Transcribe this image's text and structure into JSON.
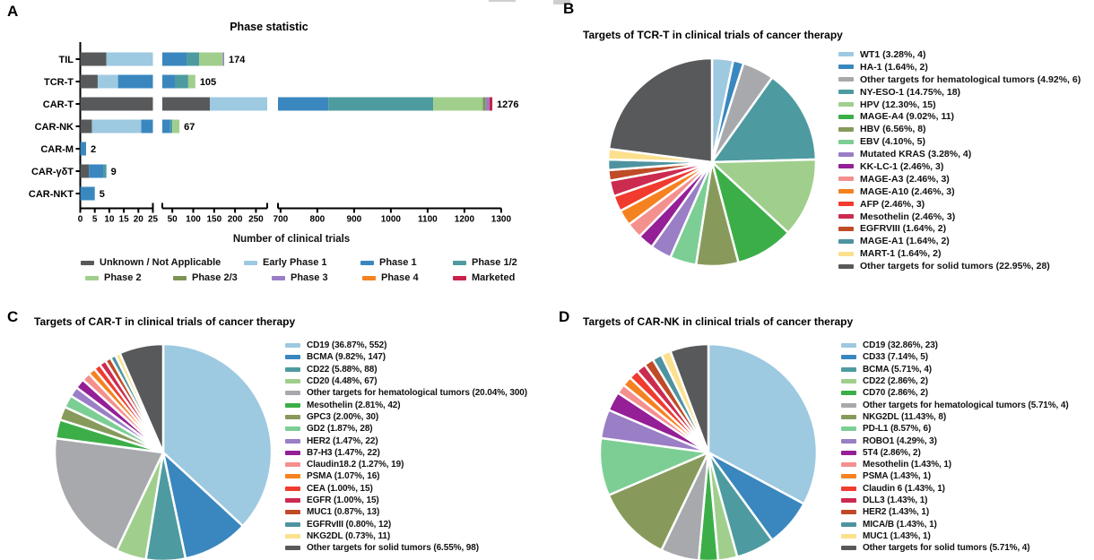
{
  "panel_labels": {
    "a": "A",
    "b": "B",
    "c": "C",
    "d": "D"
  },
  "chart_data": [
    {
      "id": "phase-bar",
      "type": "bar",
      "orientation": "horizontal-stacked",
      "title": "Phase statistic",
      "xlabel": "Number of clinical trials",
      "categories": [
        "TIL",
        "TCR-T",
        "CAR-T",
        "CAR-NK",
        "CAR-M",
        "CAR-γδT",
        "CAR-NKT"
      ],
      "totals": [
        174,
        105,
        1276,
        67,
        2,
        9,
        5
      ],
      "axis_break_domains": [
        [
          0,
          25
        ],
        [
          26,
          277
        ],
        [
          693,
          1300
        ]
      ],
      "x_ticks": [
        [
          0,
          5,
          10,
          15,
          20,
          25
        ],
        [
          50,
          100,
          150,
          200,
          250
        ],
        [
          700,
          800,
          900,
          1000,
          1100,
          1200,
          1300
        ]
      ],
      "series": [
        {
          "name": "Unknown / Not Applicable",
          "color": "#58595B",
          "values": [
            9,
            6,
            140,
            4,
            0,
            3,
            0
          ]
        },
        {
          "name": "Early Phase 1",
          "color": "#9DC9E1",
          "values": [
            17,
            7,
            150,
            17,
            0,
            0,
            0
          ]
        },
        {
          "name": "Phase 1",
          "color": "#3A87BF",
          "values": [
            58,
            43,
            540,
            24,
            2,
            5,
            5
          ]
        },
        {
          "name": "Phase 1/2",
          "color": "#4D9B9F",
          "values": [
            30,
            32,
            285,
            5,
            0,
            1,
            0
          ]
        },
        {
          "name": "Phase 2",
          "color": "#A0CF8D",
          "values": [
            57,
            17,
            135,
            17,
            0,
            0,
            0
          ]
        },
        {
          "name": "Phase 2/3",
          "color": "#7E9455",
          "values": [
            0,
            0,
            8,
            0,
            0,
            0,
            0
          ]
        },
        {
          "name": "Phase 3",
          "color": "#9A7EC6",
          "values": [
            3,
            0,
            10,
            0,
            0,
            0,
            0
          ]
        },
        {
          "name": "Phase 4",
          "color": "#F58220",
          "values": [
            0,
            0,
            0,
            0,
            0,
            0,
            0
          ]
        },
        {
          "name": "Marketed",
          "color": "#C8234A",
          "values": [
            0,
            0,
            8,
            0,
            0,
            0,
            0
          ]
        }
      ]
    },
    {
      "id": "tcr-t-pie",
      "type": "pie",
      "title": "Targets of TCR-T in clinical trials of cancer therapy",
      "legend_position": "right",
      "slices": [
        {
          "label": "WT1",
          "pct": 3.28,
          "count": 4,
          "color": "#9DC9E1"
        },
        {
          "label": "HA-1",
          "pct": 1.64,
          "count": 2,
          "color": "#3A87BF"
        },
        {
          "label": "Other targets for hematological tumors",
          "pct": 4.92,
          "count": 6,
          "color": "#A7A9AC"
        },
        {
          "label": "NY-ESO-1",
          "pct": 14.75,
          "count": 18,
          "color": "#4D9BA0"
        },
        {
          "label": "HPV",
          "pct": 12.3,
          "count": 15,
          "color": "#A0CF8D"
        },
        {
          "label": "MAGE-A4",
          "pct": 9.02,
          "count": 11,
          "color": "#3CAE48"
        },
        {
          "label": "HBV",
          "pct": 6.56,
          "count": 8,
          "color": "#879A5B"
        },
        {
          "label": "EBV",
          "pct": 4.1,
          "count": 5,
          "color": "#7CCE94"
        },
        {
          "label": "Mutated KRAS",
          "pct": 3.28,
          "count": 4,
          "color": "#9A7EC6"
        },
        {
          "label": "KK-LC-1",
          "pct": 2.46,
          "count": 3,
          "color": "#941F96"
        },
        {
          "label": "MAGE-A3",
          "pct": 2.46,
          "count": 3,
          "color": "#F4908E"
        },
        {
          "label": "MAGE-A10",
          "pct": 2.46,
          "count": 3,
          "color": "#F58220"
        },
        {
          "label": "AFP",
          "pct": 2.46,
          "count": 3,
          "color": "#F03B2E"
        },
        {
          "label": "Mesothelin",
          "pct": 2.46,
          "count": 3,
          "color": "#CC2B50"
        },
        {
          "label": "EGFRVIII",
          "pct": 1.64,
          "count": 2,
          "color": "#BF4B27"
        },
        {
          "label": "MAGE-A1",
          "pct": 1.64,
          "count": 2,
          "color": "#4E94A0"
        },
        {
          "label": "MART-1",
          "pct": 1.64,
          "count": 2,
          "color": "#FBE08E"
        },
        {
          "label": "Other targets for solid tumors",
          "pct": 22.95,
          "count": 28,
          "color": "#58595B"
        }
      ]
    },
    {
      "id": "car-t-pie",
      "type": "pie",
      "title": "Targets of CAR-T in clinical trials of cancer therapy",
      "legend_position": "right",
      "slices": [
        {
          "label": "CD19",
          "pct": 36.87,
          "count": 552,
          "color": "#9DC9E1"
        },
        {
          "label": "BCMA",
          "pct": 9.82,
          "count": 147,
          "color": "#3A87BF"
        },
        {
          "label": "CD22",
          "pct": 5.88,
          "count": 88,
          "color": "#4D9BA0"
        },
        {
          "label": "CD20",
          "pct": 4.48,
          "count": 67,
          "color": "#A0CF8D"
        },
        {
          "label": "Other targets for hematological tumors",
          "pct": 20.04,
          "count": 300,
          "color": "#A7A9AC"
        },
        {
          "label": "Mesothelin",
          "pct": 2.81,
          "count": 42,
          "color": "#3CAE48"
        },
        {
          "label": "GPC3",
          "pct": 2.0,
          "count": 30,
          "color": "#879A5B"
        },
        {
          "label": "GD2",
          "pct": 1.87,
          "count": 28,
          "color": "#7CCE94"
        },
        {
          "label": "HER2",
          "pct": 1.47,
          "count": 22,
          "color": "#9A7EC6"
        },
        {
          "label": "B7-H3",
          "pct": 1.47,
          "count": 22,
          "color": "#941F96"
        },
        {
          "label": "Claudin18.2",
          "pct": 1.27,
          "count": 19,
          "color": "#F4908E"
        },
        {
          "label": "PSMA",
          "pct": 1.07,
          "count": 16,
          "color": "#F58220"
        },
        {
          "label": "CEA",
          "pct": 1.0,
          "count": 15,
          "color": "#F03B2E"
        },
        {
          "label": "EGFR",
          "pct": 1.0,
          "count": 15,
          "color": "#CC2B50"
        },
        {
          "label": "MUC1",
          "pct": 0.87,
          "count": 13,
          "color": "#BF4B27"
        },
        {
          "label": "EGFRvIII",
          "pct": 0.8,
          "count": 12,
          "color": "#4E94A0"
        },
        {
          "label": "NKG2DL",
          "pct": 0.73,
          "count": 11,
          "color": "#FBE08E"
        },
        {
          "label": "Other targets for solid tumors",
          "pct": 6.55,
          "count": 98,
          "color": "#58595B"
        }
      ]
    },
    {
      "id": "car-nk-pie",
      "type": "pie",
      "title": "Targets of CAR-NK in clinical trials of cancer therapy",
      "legend_position": "right",
      "slices": [
        {
          "label": "CD19",
          "pct": 32.86,
          "count": 23,
          "color": "#9DC9E1"
        },
        {
          "label": "CD33",
          "pct": 7.14,
          "count": 5,
          "color": "#3A87BF"
        },
        {
          "label": "BCMA",
          "pct": 5.71,
          "count": 4,
          "color": "#4D9BA0"
        },
        {
          "label": "CD22",
          "pct": 2.86,
          "count": 2,
          "color": "#A0CF8D"
        },
        {
          "label": "CD70",
          "pct": 2.86,
          "count": 2,
          "color": "#3CAE48"
        },
        {
          "label": "Other targets for hematological tumors",
          "pct": 5.71,
          "count": 4,
          "color": "#A7A9AC"
        },
        {
          "label": "NKG2DL",
          "pct": 11.43,
          "count": 8,
          "color": "#879A5B"
        },
        {
          "label": "PD-L1",
          "pct": 8.57,
          "count": 6,
          "color": "#7CCE94"
        },
        {
          "label": "ROBO1",
          "pct": 4.29,
          "count": 3,
          "color": "#9A7EC6"
        },
        {
          "label": "5T4",
          "pct": 2.86,
          "count": 2,
          "color": "#941F96"
        },
        {
          "label": "Mesothelin",
          "pct": 1.43,
          "count": 1,
          "color": "#F4908E"
        },
        {
          "label": "PSMA",
          "pct": 1.43,
          "count": 1,
          "color": "#F58220"
        },
        {
          "label": "Claudin 6",
          "pct": 1.43,
          "count": 1,
          "color": "#F03B2E"
        },
        {
          "label": "DLL3",
          "pct": 1.43,
          "count": 1,
          "color": "#CC2B50"
        },
        {
          "label": "HER2",
          "pct": 1.43,
          "count": 1,
          "color": "#BF4B27"
        },
        {
          "label": "MICA/B",
          "pct": 1.43,
          "count": 1,
          "color": "#4E94A0"
        },
        {
          "label": "MUC1",
          "pct": 1.43,
          "count": 1,
          "color": "#FBE08E"
        },
        {
          "label": "Other targets for solid tumors",
          "pct": 5.71,
          "count": 4,
          "color": "#58595B"
        }
      ]
    }
  ]
}
